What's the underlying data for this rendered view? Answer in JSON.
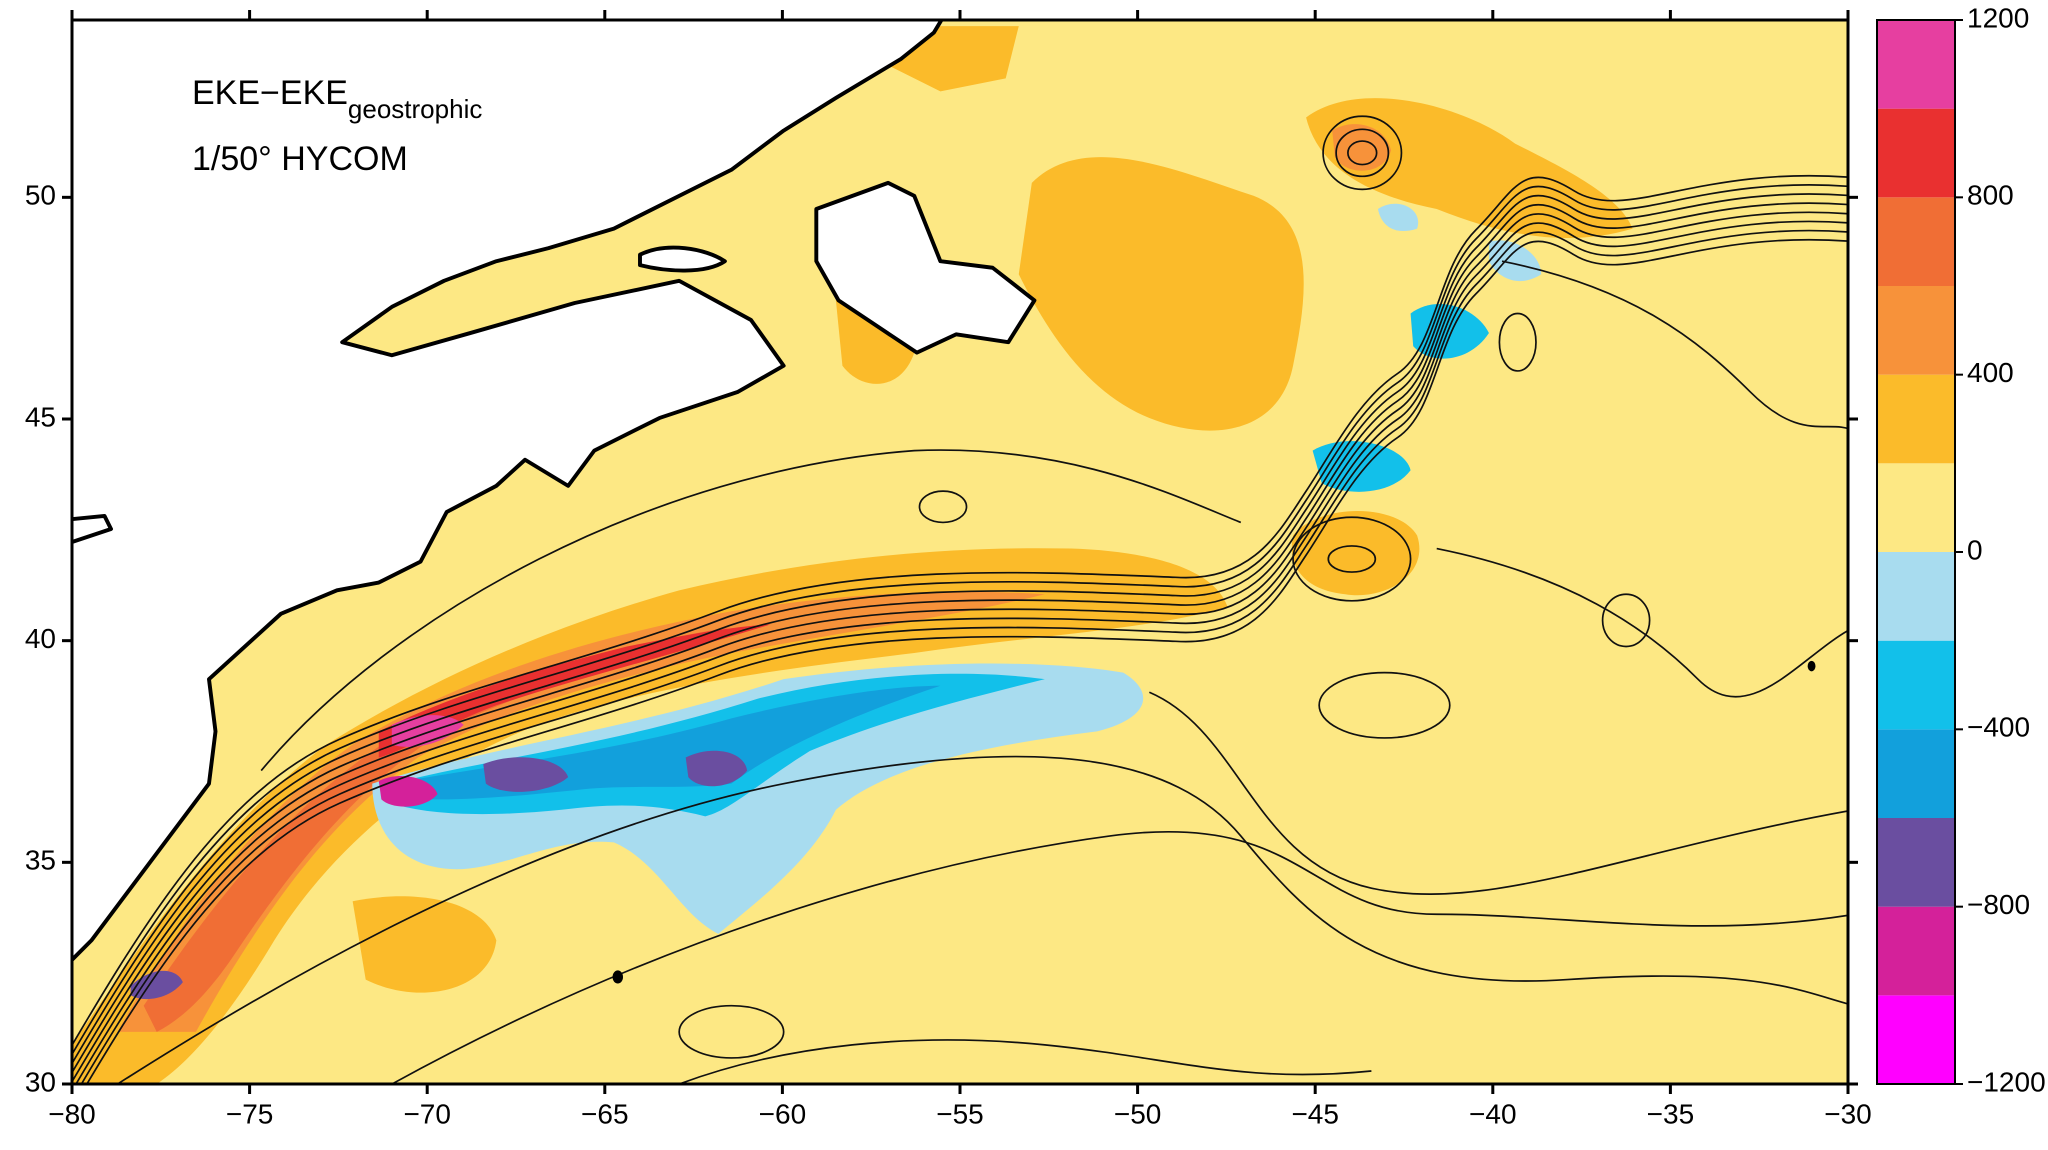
{
  "map": {
    "annotation": {
      "main": "EKE−EKE",
      "subscript": "geostrophic",
      "line2": "1/50° HYCOM"
    },
    "xlim": [
      -80,
      -30
    ],
    "ylim": [
      30,
      54
    ],
    "xticks": [
      {
        "value": -80,
        "label": "−80"
      },
      {
        "value": -75,
        "label": "−75"
      },
      {
        "value": -70,
        "label": "−70"
      },
      {
        "value": -65,
        "label": "−65"
      },
      {
        "value": -60,
        "label": "−60"
      },
      {
        "value": -55,
        "label": "−55"
      },
      {
        "value": -50,
        "label": "−50"
      },
      {
        "value": -45,
        "label": "−45"
      },
      {
        "value": -40,
        "label": "−40"
      },
      {
        "value": -35,
        "label": "−35"
      },
      {
        "value": -30,
        "label": "−30"
      }
    ],
    "yticks": [
      30,
      35,
      40,
      45,
      50
    ],
    "colorbar": {
      "levels": [
        -1200,
        -1000,
        -800,
        -600,
        -400,
        -200,
        0,
        200,
        400,
        600,
        800,
        1000,
        1200
      ],
      "colors": [
        "#ff00ff",
        "#d4219a",
        "#6a4ea0",
        "#12a0dc",
        "#12c0ea",
        "#a8dcef",
        "#fde884",
        "#fbbb2a",
        "#f7923a",
        "#f06e35",
        "#e93030",
        "#e63fa0"
      ],
      "ticks": [
        1200,
        800,
        400,
        0,
        {
          "value": -400,
          "label": "−400"
        },
        {
          "value": -800,
          "label": "−800"
        },
        {
          "value": -1200,
          "label": "−1200"
        }
      ]
    }
  }
}
